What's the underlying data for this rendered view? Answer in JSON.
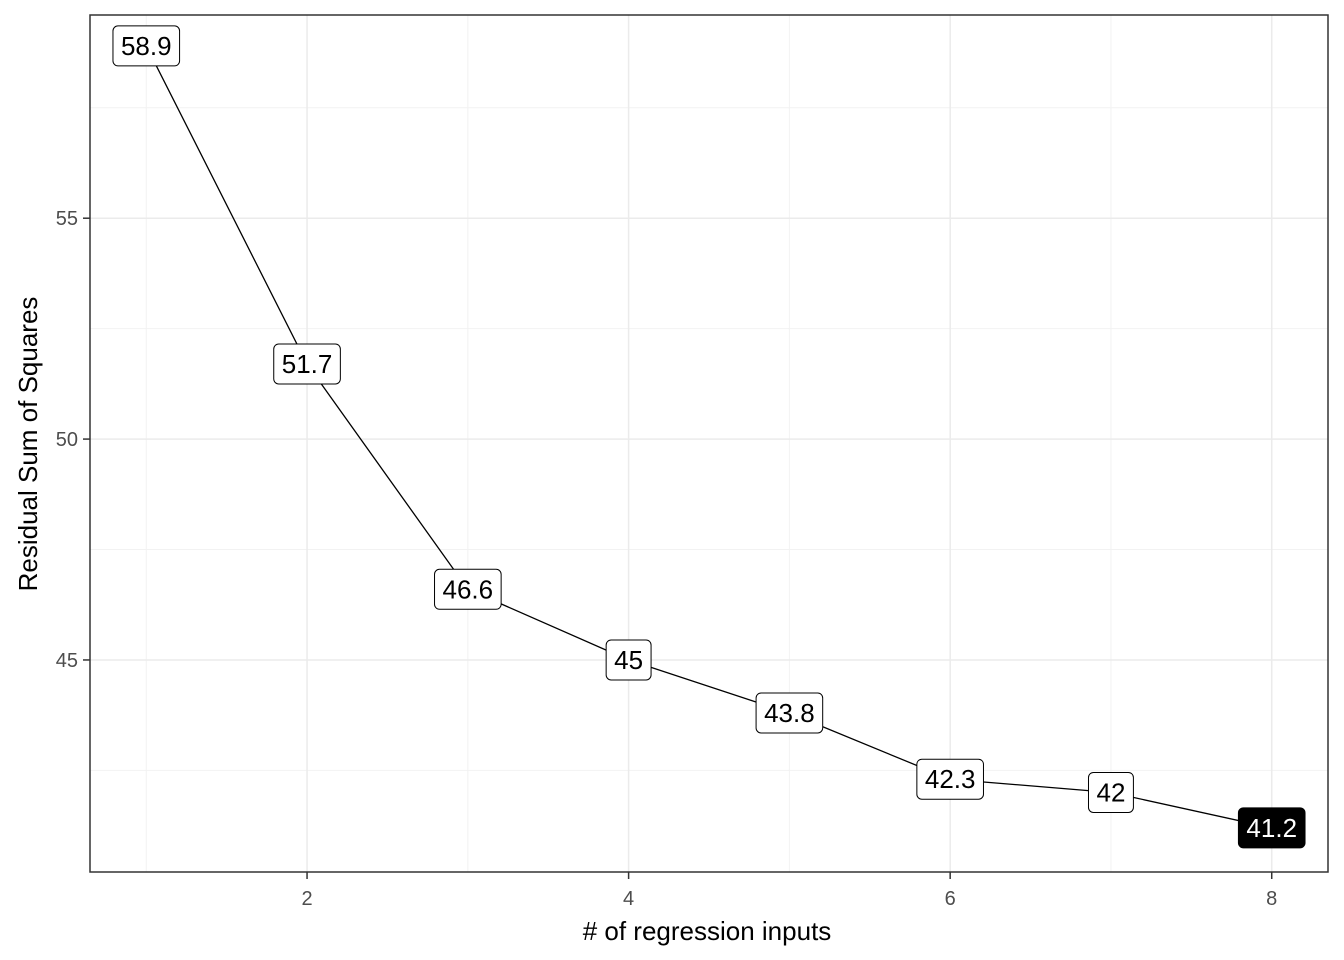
{
  "chart_data": {
    "type": "line",
    "title": "",
    "xlabel": "# of regression inputs",
    "ylabel": "Residual Sum of Squares",
    "x": [
      1,
      2,
      3,
      4,
      5,
      6,
      7,
      8
    ],
    "series": [
      {
        "values": [
          58.9,
          51.7,
          46.6,
          45.0,
          43.8,
          42.3,
          42.0,
          41.2
        ],
        "labels": [
          "58.9",
          "51.7",
          "46.6",
          "45",
          "43.8",
          "42.3",
          "42",
          "41.2"
        ],
        "highlight_index": 7
      }
    ],
    "xlim": [
      0.65,
      8.35
    ],
    "ylim": [
      40.2,
      59.6
    ],
    "x_ticks": [
      2,
      4,
      6,
      8
    ],
    "y_ticks": [
      45,
      50,
      55
    ],
    "grid": true,
    "legend": "none",
    "colors": {
      "line": "#000000",
      "label_fill": "#ffffff",
      "label_text": "#000000",
      "highlight_fill": "#000000",
      "highlight_text": "#ffffff",
      "grid_major": "#ebebeb",
      "grid_minor": "#f2f2f2",
      "panel_border": "#333333",
      "tick_text": "#4d4d4d"
    }
  }
}
